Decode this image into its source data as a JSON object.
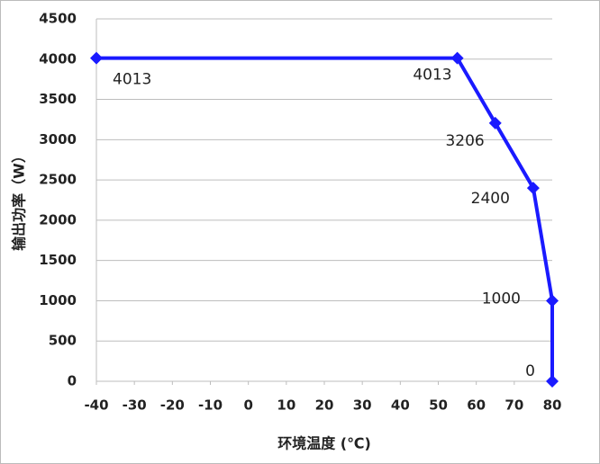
{
  "chart_data": {
    "type": "line",
    "x_label": "环境温度 (℃)",
    "y_label": "输出功率（W）",
    "x": [
      -40,
      55,
      65,
      75,
      80,
      80
    ],
    "series": [
      {
        "name": "输出功率",
        "color": "#1a1aff",
        "values": [
          4013,
          4013,
          3206,
          2400,
          1000,
          0
        ]
      }
    ],
    "xlim": [
      -40,
      80
    ],
    "xticks": [
      -40,
      -30,
      -20,
      -10,
      0,
      10,
      20,
      30,
      40,
      50,
      60,
      70,
      80
    ],
    "ylim": [
      0,
      4500
    ],
    "yticks": [
      0,
      500,
      1000,
      1500,
      2000,
      2500,
      3000,
      3500,
      4000,
      4500
    ],
    "grid": true
  }
}
